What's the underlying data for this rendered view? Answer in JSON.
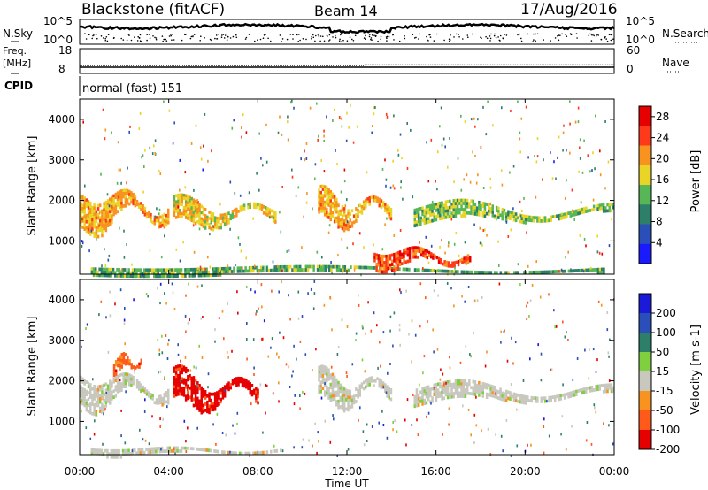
{
  "header": {
    "station": "Blackstone (fitACF)",
    "beam": "Beam 14",
    "date": "17/Aug/2016"
  },
  "top_panels": {
    "nsky": {
      "label": "N.Sky",
      "ticks_left": [
        "10^5",
        "10^0"
      ],
      "ticks_right": [
        "10^5",
        "10^0"
      ],
      "right_label": "N.Search"
    },
    "freq": {
      "label_line1": "Freq.",
      "label_line2": "[MHz]",
      "ticks_left": [
        "18",
        "8"
      ],
      "ticks_right": [
        "60",
        "0"
      ],
      "right_label": "Nave",
      "freq_value_mhz": 10.5,
      "nave_value_early": 19,
      "nave_value_late": 21
    },
    "cpid": {
      "label": "CPID",
      "value": "normal (fast) 151"
    }
  },
  "chart_data": [
    {
      "type": "heatmap",
      "title": "",
      "xlabel": "",
      "ylabel": "Slant Range [km]",
      "x_ticks": [
        "00:00",
        "04:00",
        "08:00",
        "12:00",
        "16:00",
        "20:00",
        "00:00"
      ],
      "xlim_hours": [
        0,
        24
      ],
      "ylim": [
        180,
        4500
      ],
      "y_ticks": [
        1000,
        2000,
        3000,
        4000
      ],
      "colorbar": {
        "label": "Power [dB]",
        "ticks": [
          4,
          8,
          12,
          16,
          20,
          24,
          28
        ],
        "range": [
          0,
          30
        ],
        "colors": [
          "#1a1aff",
          "#2a4fb8",
          "#2d7f6a",
          "#57b757",
          "#e9d427",
          "#f7931e",
          "#ff3a1a",
          "#e60000"
        ]
      },
      "features": [
        {
          "region": "E/near-range band",
          "t": [
            0.5,
            23.5
          ],
          "range_km": [
            180,
            420
          ],
          "power_db": 12
        },
        {
          "region": "main F echoes",
          "t": [
            0,
            4
          ],
          "range_km": [
            1200,
            2400
          ],
          "power_db": 20
        },
        {
          "region": "patch",
          "t": [
            4.2,
            8.8
          ],
          "range_km": [
            1300,
            2100
          ],
          "power_db": 18
        },
        {
          "region": "dawn echoes",
          "t": [
            10.7,
            14
          ],
          "range_km": [
            1300,
            2300
          ],
          "power_db": 20
        },
        {
          "region": "strong near-range",
          "t": [
            13.2,
            17.5
          ],
          "range_km": [
            300,
            900
          ],
          "power_db": 26
        },
        {
          "region": "late band",
          "t": [
            15,
            24
          ],
          "range_km": [
            1400,
            2000
          ],
          "power_db": 14
        }
      ]
    },
    {
      "type": "heatmap",
      "title": "",
      "xlabel": "Time UT",
      "ylabel": "Slant Range [km]",
      "x_ticks": [
        "00:00",
        "04:00",
        "08:00",
        "12:00",
        "16:00",
        "20:00",
        "00:00"
      ],
      "xlim_hours": [
        0,
        24
      ],
      "ylim": [
        180,
        4500
      ],
      "y_ticks": [
        1000,
        2000,
        3000,
        4000
      ],
      "colorbar": {
        "label": "Velocity [m s-1]",
        "ticks": [
          200,
          100,
          50,
          15,
          -15,
          -50,
          -100,
          -200
        ],
        "range": [
          -250,
          250
        ],
        "colors": [
          "#1a1ad8",
          "#2a4fb8",
          "#2d7f6a",
          "#7fcf3f",
          "#c8c8be",
          "#f7931e",
          "#ff5a1a",
          "#e60000"
        ]
      },
      "features": [
        {
          "region": "ground scatter band",
          "t": [
            0.5,
            9
          ],
          "range_km": [
            180,
            400
          ],
          "velocity": 0
        },
        {
          "region": "early echoes",
          "t": [
            0,
            4
          ],
          "range_km": [
            1300,
            2300
          ],
          "velocity": 0
        },
        {
          "region": "orange streak",
          "t": [
            1.5,
            2.8
          ],
          "range_km": [
            2200,
            2700
          ],
          "velocity": -100
        },
        {
          "region": "red patch",
          "t": [
            4.2,
            8
          ],
          "range_km": [
            1200,
            2300
          ],
          "velocity": -180
        },
        {
          "region": "dawn echoes",
          "t": [
            10.7,
            14
          ],
          "range_km": [
            1300,
            2300
          ],
          "velocity": 0
        },
        {
          "region": "late band",
          "t": [
            15,
            24
          ],
          "range_km": [
            1400,
            2000
          ],
          "velocity": 0
        }
      ]
    }
  ]
}
